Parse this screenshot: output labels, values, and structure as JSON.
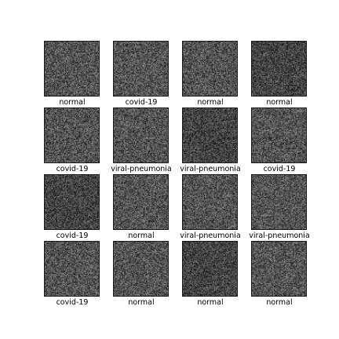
{
  "grid": {
    "rows": 4,
    "columns": 4,
    "cells": [
      {
        "label": "normal",
        "tone": "mid"
      },
      {
        "label": "covid-19",
        "tone": "mid"
      },
      {
        "label": "normal",
        "tone": "mid"
      },
      {
        "label": "normal",
        "tone": "dark"
      },
      {
        "label": "covid-19",
        "tone": "mid"
      },
      {
        "label": "viral-pneumonia",
        "tone": "mid"
      },
      {
        "label": "viral-pneumonia",
        "tone": "dark"
      },
      {
        "label": "covid-19",
        "tone": "mid"
      },
      {
        "label": "covid-19",
        "tone": "dark"
      },
      {
        "label": "normal",
        "tone": "mid"
      },
      {
        "label": "viral-pneumonia",
        "tone": "mid"
      },
      {
        "label": "viral-pneumonia",
        "tone": "mid"
      },
      {
        "label": "covid-19",
        "tone": "mid"
      },
      {
        "label": "normal",
        "tone": "mid"
      },
      {
        "label": "normal",
        "tone": "dark"
      },
      {
        "label": "normal",
        "tone": "mid"
      }
    ]
  }
}
